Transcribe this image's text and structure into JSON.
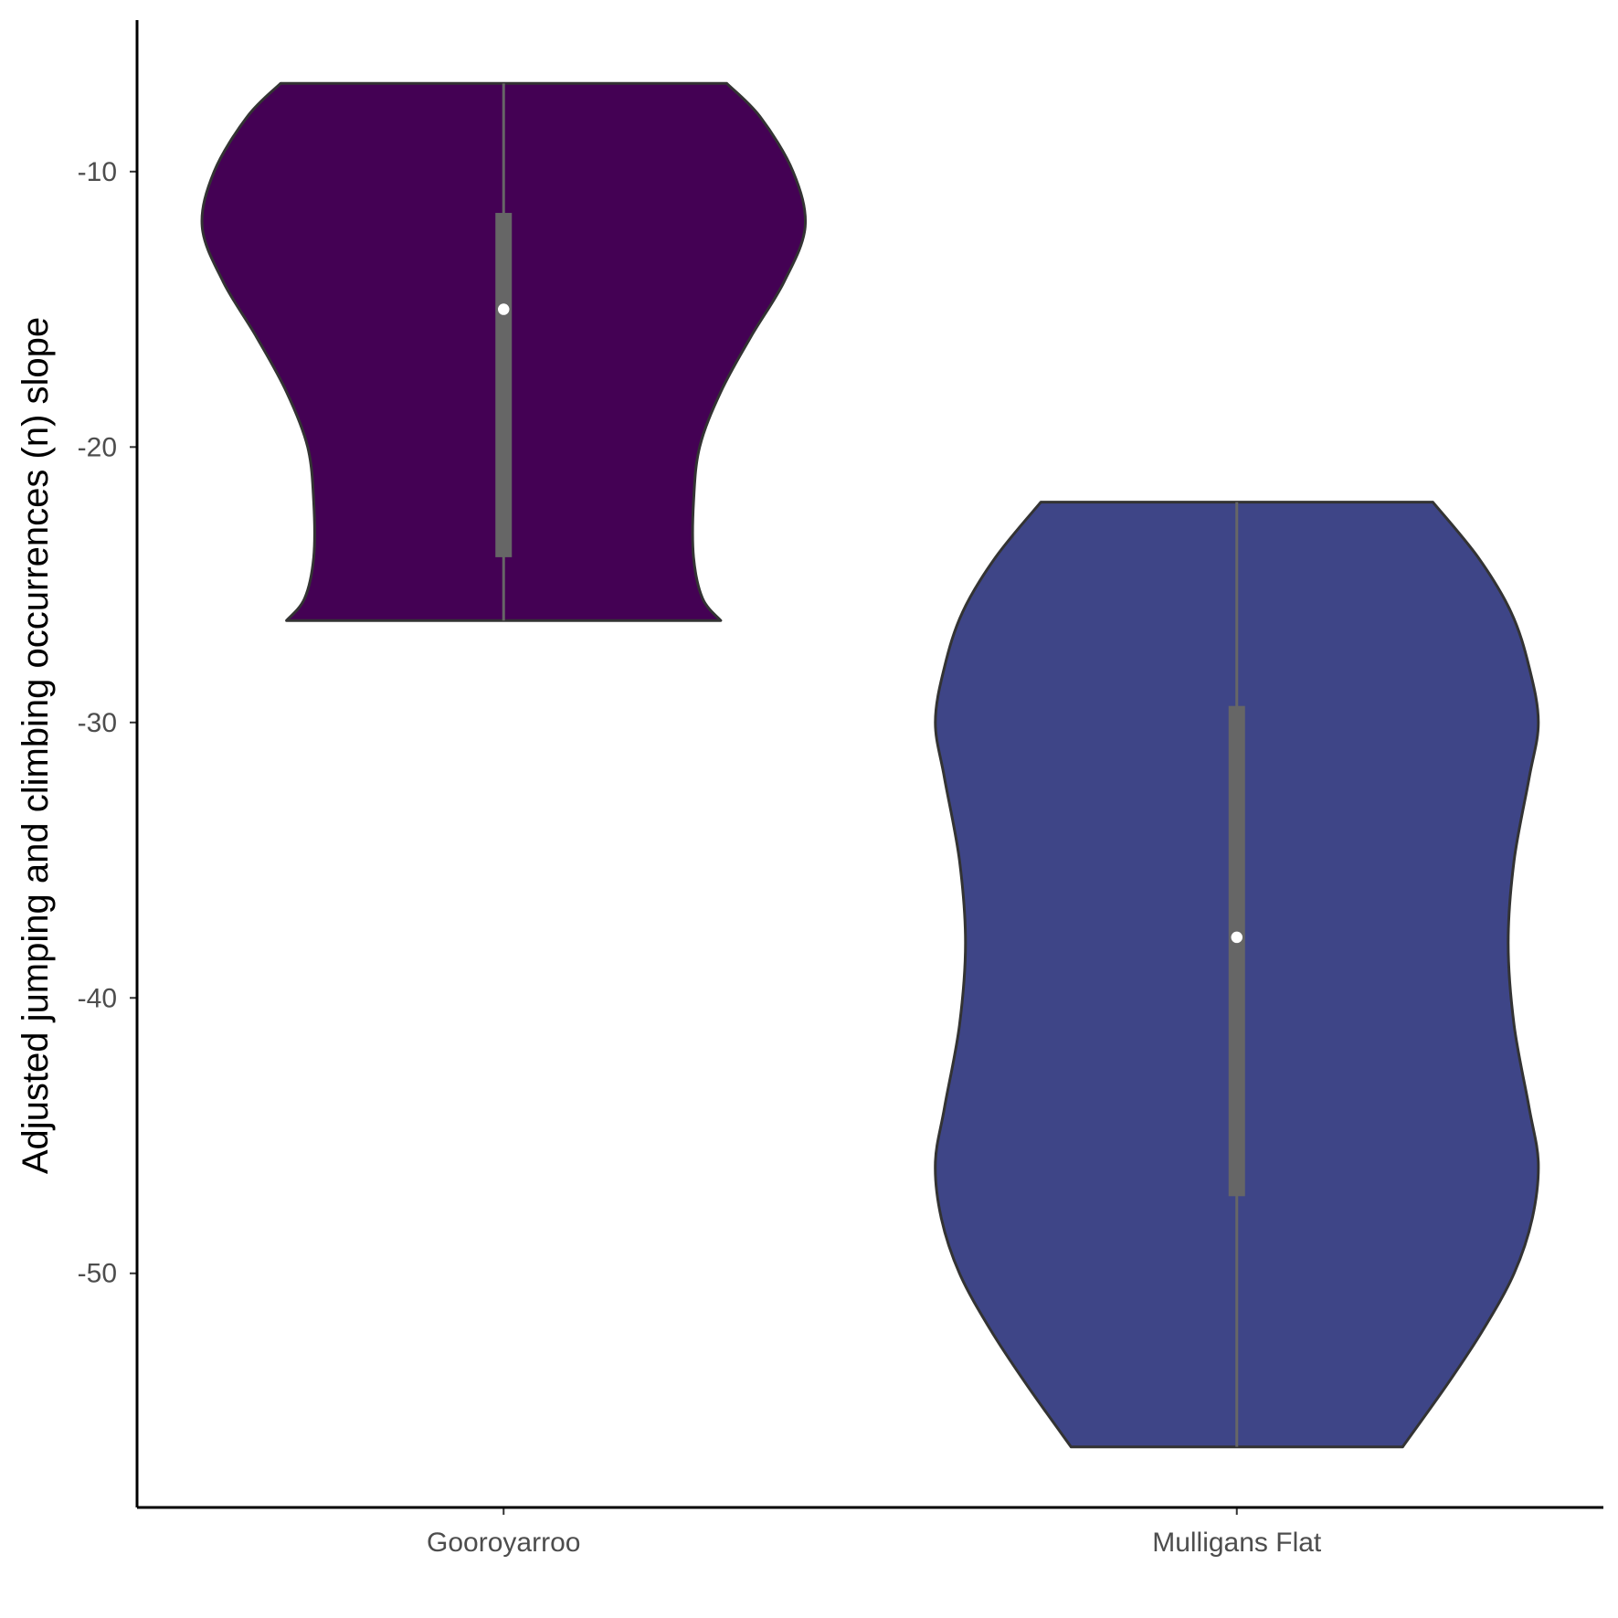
{
  "chart_data": {
    "type": "violin",
    "title": "",
    "xlabel": "",
    "ylabel": "Adjusted jumping and climbing occurrences (n) slope",
    "ylim": [
      -58.5,
      -4.5
    ],
    "yticks": [
      -10,
      -20,
      -30,
      -40,
      -50
    ],
    "ytick_labels": [
      "-10",
      "-20",
      "-30",
      "-40",
      "-50"
    ],
    "grid": false,
    "legend": "none",
    "categories": [
      "Gooroyarroo",
      "Mulligans Flat"
    ],
    "series": [
      {
        "category": "Gooroyarroo",
        "color": "#440154",
        "min": -26.3,
        "q1": -24.0,
        "median": -15.0,
        "q3": -11.5,
        "max": -6.8,
        "density": [
          [
            -6.8,
            0.74
          ],
          [
            -8.0,
            0.85
          ],
          [
            -10.0,
            0.96
          ],
          [
            -12.0,
            1.0
          ],
          [
            -14.0,
            0.93
          ],
          [
            -16.0,
            0.82
          ],
          [
            -18.0,
            0.72
          ],
          [
            -20.0,
            0.65
          ],
          [
            -22.0,
            0.63
          ],
          [
            -24.0,
            0.63
          ],
          [
            -25.5,
            0.66
          ],
          [
            -26.3,
            0.72
          ]
        ]
      },
      {
        "category": "Mulligans Flat",
        "color": "#3e4587",
        "min": -56.3,
        "q1": -47.2,
        "median": -37.8,
        "q3": -29.4,
        "max": -22.0,
        "density": [
          [
            -22.0,
            0.65
          ],
          [
            -24.0,
            0.8
          ],
          [
            -26.0,
            0.91
          ],
          [
            -28.0,
            0.97
          ],
          [
            -30.0,
            1.0
          ],
          [
            -32.0,
            0.97
          ],
          [
            -35.0,
            0.92
          ],
          [
            -38.0,
            0.9
          ],
          [
            -41.0,
            0.92
          ],
          [
            -44.0,
            0.97
          ],
          [
            -46.0,
            1.0
          ],
          [
            -48.0,
            0.98
          ],
          [
            -50.0,
            0.92
          ],
          [
            -52.0,
            0.82
          ],
          [
            -54.0,
            0.7
          ],
          [
            -56.3,
            0.55
          ]
        ]
      }
    ]
  }
}
